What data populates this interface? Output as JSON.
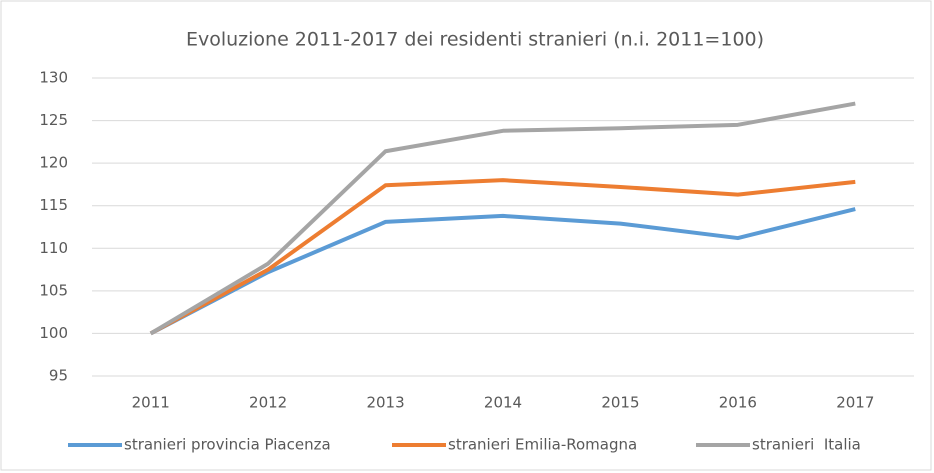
{
  "chart_data": {
    "type": "line",
    "title": "Evoluzione 2011-2017 dei residenti stranieri (n.i. 2011=100)",
    "categories": [
      "2011",
      "2012",
      "2013",
      "2014",
      "2015",
      "2016",
      "2017"
    ],
    "series": [
      {
        "name": "stranieri provincia Piacenza",
        "color": "#5b9bd5",
        "values": [
          100,
          107.2,
          113.1,
          113.8,
          112.9,
          111.2,
          114.6
        ]
      },
      {
        "name": "stranieri Emilia-Romagna",
        "color": "#ed7d31",
        "values": [
          100,
          107.5,
          117.4,
          118.0,
          117.2,
          116.3,
          117.8
        ]
      },
      {
        "name": "stranieri  Italia",
        "color": "#a5a5a5",
        "values": [
          100,
          108.2,
          121.4,
          123.8,
          124.1,
          124.5,
          127.0
        ]
      }
    ],
    "ylim": [
      95,
      130
    ],
    "yticks": [
      95,
      100,
      105,
      110,
      115,
      120,
      125,
      130
    ],
    "grid": true,
    "legend": "bottom"
  }
}
